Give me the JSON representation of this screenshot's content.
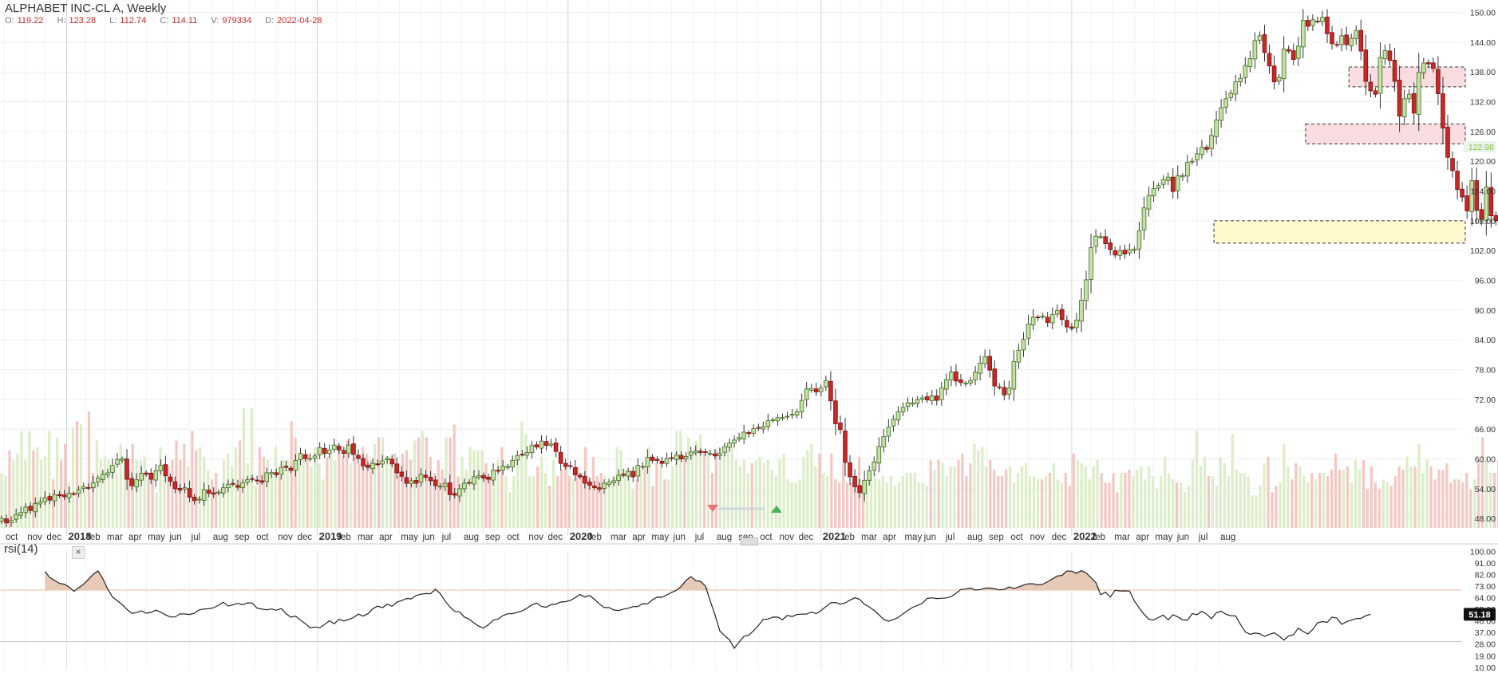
{
  "header": {
    "title": "ALPHABET INC-CL A, Weekly",
    "ohlc": [
      {
        "k": "O:",
        "v": "119.22"
      },
      {
        "k": "H:",
        "v": "123.28"
      },
      {
        "k": "L:",
        "v": "112.74"
      },
      {
        "k": "C:",
        "v": "114.11"
      },
      {
        "k": "V:",
        "v": "979334"
      },
      {
        "k": "D:",
        "v": "2022-04-28"
      }
    ]
  },
  "rsi_panel": {
    "title": "rsi(14)",
    "close_label": "×",
    "last_value_label": "51.18"
  },
  "price_label": "122.98",
  "colors": {
    "up": "#7cb342",
    "up_fill": "#c5e1a5",
    "down": "#c62828",
    "vol_up": "#dcedc8",
    "vol_down": "#f4c7c3",
    "zone_red": "#f8d7da",
    "zone_yellow": "#fff9c4",
    "rsi_fill": "#e6c9b6"
  },
  "chart_data": [
    {
      "type": "candlestick",
      "title": "ALPHABET INC-CL A, Weekly",
      "y_ticks": [
        "150.00",
        "144.00",
        "138.00",
        "132.00",
        "126.00",
        "120.00",
        "114.00",
        "108.00",
        "102.00",
        "96.00",
        "90.00",
        "84.00",
        "78.00",
        "72.00",
        "66.00",
        "60.00",
        "54.00",
        "48.00"
      ],
      "y_tick_values": [
        150,
        144,
        138,
        132,
        126,
        120,
        114,
        108,
        102,
        96,
        90,
        84,
        78,
        72,
        66,
        60,
        54,
        48
      ],
      "ylim": [
        44.5,
        152.5
      ],
      "x_tick_labels": [
        "oct",
        "nov",
        "dec",
        "2018",
        "feb",
        "mar",
        "apr",
        "may",
        "jun",
        "jul",
        "aug",
        "sep",
        "oct",
        "nov",
        "dec",
        "2019",
        "feb",
        "mar",
        "apr",
        "may",
        "jun",
        "jul",
        "aug",
        "sep",
        "oct",
        "nov",
        "dec",
        "2020",
        "feb",
        "mar",
        "apr",
        "may",
        "jun",
        "jul",
        "aug",
        "sep",
        "oct",
        "nov",
        "dec",
        "2021",
        "feb",
        "mar",
        "apr",
        "may",
        "jun",
        "jul",
        "aug",
        "sep",
        "oct",
        "nov",
        "dec",
        "2022",
        "feb",
        "mar",
        "apr",
        "may",
        "jun",
        "jul",
        "aug"
      ],
      "x_tick_positions": [
        0.5,
        5,
        9,
        13.5,
        17.5,
        21.5,
        26,
        30,
        34.5,
        39,
        43.5,
        48,
        52.5,
        57,
        61,
        65.5,
        69.5,
        73.5,
        78,
        82.5,
        87,
        91,
        95.5,
        100,
        104.5,
        109,
        113,
        117.5,
        121.5,
        126,
        130.5,
        134.5,
        139,
        143.5,
        148,
        152.5,
        157,
        161,
        165,
        170,
        174,
        178,
        182.5,
        187,
        191,
        195.5,
        200,
        204.5,
        209,
        213,
        217.5,
        222,
        226,
        230.5,
        235,
        239,
        243.5,
        248,
        252.5
      ],
      "x_tick_bold": [
        "2018",
        "2019",
        "2020",
        "2021",
        "2022"
      ],
      "weekly_close": [
        48.0,
        47.1,
        47.6,
        48.8,
        49.2,
        50.3,
        49.6,
        51.0,
        51.3,
        52.2,
        51.7,
        52.8,
        52.6,
        52.4,
        53.1,
        53.0,
        53.8,
        54.4,
        54.2,
        55.2,
        56.1,
        56.9,
        57.2,
        58.7,
        59.9,
        60.0,
        55.9,
        54.6,
        55.8,
        57.1,
        56.9,
        55.9,
        57.6,
        58.7,
        56.6,
        55.5,
        54.0,
        53.7,
        54.2,
        52.3,
        51.6,
        51.9,
        53.8,
        53.1,
        52.9,
        53.3,
        54.2,
        54.9,
        54.9,
        54.3,
        55.2,
        55.8,
        55.9,
        55.6,
        55.3,
        57.2,
        57.3,
        56.8,
        58.3,
        58.3,
        57.7,
        59.7,
        61.1,
        60.1,
        60.1,
        60.6,
        62.3,
        61.1,
        61.8,
        62.8,
        61.8,
        61.1,
        62.8,
        60.9,
        60.1,
        58.6,
        58.3,
        59.1,
        58.9,
        59.6,
        60.1,
        59.0,
        57.2,
        56.5,
        55.1,
        55.6,
        55.1,
        56.9,
        56.3,
        55.6,
        54.6,
        54.5,
        55.1,
        52.8,
        52.7,
        54.0,
        55.1,
        55.2,
        56.4,
        56.6,
        56.1,
        55.9,
        57.7,
        57.6,
        58.5,
        58.5,
        59.7,
        60.7,
        60.9,
        61.3,
        62.7,
        62.4,
        63.6,
        62.7,
        63.0,
        61.5,
        59.1,
        58.5,
        58.5,
        56.8,
        56.4,
        55.1,
        54.7,
        54.2,
        53.9,
        55.1,
        55.3,
        55.6,
        56.7,
        56.7,
        57.5,
        56.4,
        58.7,
        58.5,
        60.3,
        59.7,
        59.7,
        59.1,
        60.1,
        60.1,
        60.8,
        60.0,
        60.5,
        61.4,
        61.6,
        61.3,
        61.3,
        61.1,
        60.6,
        61.1,
        62.5,
        63.2,
        63.8,
        64.3,
        65.4,
        65.1,
        66.1,
        66.2,
        66.5,
        67.7,
        67.9,
        68.3,
        68.4,
        68.6,
        69.0,
        69.5,
        71.8,
        74.1,
        74.2,
        73.5,
        74.3,
        75.8,
        71.7,
        67.1,
        65.9,
        59.3,
        56.4,
        54.4,
        53.2,
        55.7,
        57.6,
        59.4,
        62.5,
        64.5,
        66.4,
        68.0,
        69.5,
        70.4,
        71.3,
        71.3,
        72.0,
        72.3,
        71.9,
        72.7,
        71.8,
        74.3,
        76.0,
        77.5,
        75.7,
        75.4,
        75.3,
        75.8,
        77.5,
        79.3,
        80.6,
        77.9,
        74.7,
        74.4,
        72.9,
        74.3,
        79.6,
        81.9,
        84.1,
        87.2,
        88.6,
        88.5,
        88.8,
        87.5,
        89.1,
        89.9,
        88.1,
        86.6,
        86.3,
        88.0,
        92.0,
        96.1,
        102.6,
        104.9,
        104.8,
        103.4,
        102.2,
        101.1,
        102.0,
        101.3,
        102.2,
        102.3,
        106.0,
        110.6,
        113.1,
        114.5,
        115.1,
        116.3,
        116.8,
        113.9,
        117.1,
        117.1,
        119.8,
        120.0,
        121.5,
        122.8,
        122.4,
        125.2,
        128.3,
        130.8,
        132.6,
        133.7,
        136.0,
        136.7,
        139.3,
        140.7,
        144.3,
        145.3,
        141.9,
        139.2,
        136.0,
        136.9,
        142.6,
        142.2,
        140.5,
        143.2,
        148.4,
        147.2,
        148.5,
        148.2,
        149.0,
        145.7,
        143.7,
        143.5,
        145.3,
        143.5,
        144.8,
        146.3,
        142.2,
        136.1,
        134.2,
        133.5,
        140.9,
        142.3,
        140.3,
        136.1,
        129.1,
        132.6,
        133.5,
        129.7,
        137.9,
        139.8,
        139.6,
        138.7,
        133.6,
        126.7,
        120.8,
        118.1,
        114.3,
        112.8,
        110.0,
        116.1,
        110.1,
        108.3,
        114.8,
        109.0,
        108.0,
        113.3,
        113.0,
        117.9,
        117.4,
        114.4,
        117.9,
        115.0,
        107.5,
        109.8,
        110.4,
        113.2,
        114.6,
        117.6,
        118.6,
        121.6,
        122.9
      ],
      "zones": [
        {
          "from": 135.0,
          "to": 139.0,
          "start_index": 280,
          "color": "red"
        },
        {
          "from": 123.5,
          "to": 127.5,
          "start_index": 271,
          "color": "red"
        },
        {
          "from": 103.5,
          "to": 108.0,
          "start_index": 252,
          "color": "yellow"
        }
      ],
      "annotations": [
        "down-marker (feb 2020)",
        "up-marker (may 2020)"
      ]
    },
    {
      "type": "line",
      "title": "rsi(14)",
      "y_ticks": [
        "100.00",
        "91.00",
        "82.00",
        "73.00",
        "64.00",
        "55.00",
        "46.00",
        "37.00",
        "28.00",
        "19.00",
        "10.00"
      ],
      "y_tick_values": [
        100,
        91,
        82,
        73,
        64,
        55,
        46,
        37,
        28,
        19,
        10
      ],
      "ylim": [
        8.0,
        101.0
      ],
      "overbought": 70,
      "oversold": 30,
      "last_value": 51.18,
      "values": [
        84.5,
        79.8,
        77.5,
        75.2,
        74.6,
        72.4,
        69.1,
        71.8,
        74.6,
        78.3,
        82.3,
        84.9,
        79.0,
        70.8,
        64.6,
        61.7,
        58.8,
        55.0,
        51.9,
        52.5,
        53.9,
        52.0,
        52.7,
        54.4,
        52.8,
        50.7,
        49.1,
        49.1,
        51.5,
        51.4,
        51.0,
        52.1,
        54.6,
        55.3,
        55.5,
        56.3,
        58.2,
        60.6,
        57.6,
        58.6,
        59.7,
        58.5,
        60.1,
        59.9,
        55.9,
        55.2,
        54.7,
        55.3,
        54.3,
        55.6,
        51.7,
        48.9,
        49.7,
        46.6,
        43.9,
        40.7,
        41.3,
        40.7,
        43.2,
        46.1,
        43.8,
        47.3,
        46.0,
        47.1,
        48.7,
        51.3,
        49.8,
        51.6,
        55.5,
        57.5,
        56.3,
        59.1,
        57.4,
        60.6,
        61.8,
        63.4,
        63.2,
        65.8,
        66.8,
        67.3,
        67.2,
        70.7,
        67.3,
        61.5,
        57.0,
        53.4,
        53.0,
        49.1,
        47.4,
        44.4,
        41.9,
        40.4,
        43.1,
        46.6,
        47.5,
        50.2,
        51.5,
        51.7,
        52.7,
        53.8,
        55.9,
        58.5,
        59.9,
        57.2,
        56.7,
        58.8,
        59.1,
        60.7,
        61.0,
        62.0,
        64.1,
        66.5,
        64.6,
        65.8,
        62.8,
        59.3,
        56.4,
        56.5,
        54.5,
        54.1,
        55.2,
        55.9,
        57.1,
        57.2,
        59.4,
        59.3,
        62.4,
        64.5,
        64.4,
        66.2,
        68.2,
        69.9,
        72.9,
        77.6,
        80.5,
        77.3,
        76.8,
        73.2,
        61.7,
        50.7,
        38.2,
        34.6,
        31.3,
        24.8,
        29.5,
        34.1,
        35.0,
        38.3,
        42.5,
        47.2,
        47.5,
        48.9,
        49.0,
        47.0,
        50.3,
        49.4,
        51.0,
        51.3,
        51.4,
        52.9,
        51.7,
        54.1,
        57.1,
        60.2,
        60.3,
        59.1,
        60.0,
        62.1,
        64.0,
        62.9,
        58.9,
        56.9,
        54.2,
        50.8,
        47.2,
        45.8,
        47.1,
        48.7,
        51.6,
        54.2,
        56.6,
        58.1,
        59.8,
        63.5,
        64.0,
        63.4,
        63.6,
        63.9,
        64.9,
        67.5,
        70.5,
        70.8,
        71.6,
        70.0,
        70.4,
        71.5,
        71.6,
        71.0,
        70.1,
        70.6,
        72.5,
        71.3,
        72.4,
        73.9,
        74.9,
        74.9,
        74.1,
        74.6,
        76.5,
        78.7,
        81.0,
        81.5,
        84.9,
        84.7,
        83.1,
        85.1,
        83.3,
        79.7,
        75.9,
        66.4,
        68.4,
        64.6,
        69.8,
        69.3,
        69.4,
        69.2,
        61.5,
        56.1,
        51.2,
        47.3,
        46.8,
        48.7,
        50.6,
        46.8,
        50.9,
        49.1,
        46.9,
        46.6,
        51.7,
        50.9,
        53.5,
        51.2,
        47.7,
        52.4,
        53.6,
        51.2,
        50.1,
        50.0,
        43.3,
        37.5,
        35.6,
        36.6,
        36.1,
        34.0,
        35.5,
        36.8,
        34.3,
        31.1,
        34.3,
        35.2,
        40.5,
        37.8,
        35.9,
        39.4,
        44.6,
        45.5,
        44.9,
        49.0,
        48.2,
        43.4,
        45.4,
        46.7,
        47.8,
        48.0,
        50.1,
        51.2
      ]
    },
    {
      "type": "bar",
      "title": "",
      "values": [
        17,
        16,
        24,
        21,
        23,
        30,
        21,
        30,
        24,
        25,
        21,
        22,
        30,
        15,
        28,
        21,
        26,
        14,
        31,
        33,
        32,
        11,
        36,
        17,
        27,
        21,
        22,
        21,
        19,
        17,
        26,
        22,
        18,
        26,
        21,
        21,
        22,
        15,
        15,
        11,
        25,
        17,
        19,
        21,
        27,
        21,
        26,
        19,
        30,
        24,
        25,
        22,
        18,
        15,
        17,
        12,
        21,
        23,
        19,
        25,
        27,
        37,
        20,
        37,
        13,
        25,
        22,
        21,
        16,
        25,
        16,
        21,
        21,
        33,
        28,
        21,
        22,
        23,
        19,
        25,
        20,
        15,
        22,
        23,
        21,
        26,
        22,
        27,
        20,
        22,
        20,
        25,
        23,
        21,
        26,
        28,
        28,
        22,
        22,
        23,
        16,
        23,
        24,
        21,
        27,
        28,
        30,
        28,
        22,
        17,
        21,
        18,
        28,
        28,
        32,
        16,
        22,
        18,
        25,
        24,
        24,
        24,
        20,
        15,
        15,
        21,
        25,
        16,
        11,
        16,
        22,
        33,
        29,
        16,
        16,
        19,
        22,
        17,
        13,
        21,
        16,
        18,
        20,
        16,
        15,
        19,
        17,
        25,
        15,
        22,
        16,
        17,
        16,
        13,
        16,
        25,
        24,
        18,
        18,
        12,
        15,
        18,
        19,
        25,
        13,
        20,
        20,
        15,
        15,
        19,
        30,
        30,
        22,
        28,
        23,
        27,
        29,
        23,
        24,
        17,
        24,
        25,
        23,
        24,
        25,
        21,
        19,
        21,
        17,
        20,
        21,
        22,
        20,
        21,
        18,
        16,
        21,
        23,
        15,
        14,
        14,
        15,
        22,
        24,
        26,
        19,
        23,
        17,
        16,
        23,
        15,
        14,
        20,
        14,
        14,
        16,
        22,
        13,
        14,
        15,
        17,
        15,
        16,
        14,
        16,
        13,
        14,
        16,
        17,
        17,
        17,
        14,
        14,
        13,
        21,
        18,
        21,
        20,
        16,
        19,
        19,
        21,
        23,
        16,
        20,
        26,
        24,
        25,
        19,
        21,
        18,
        16,
        16,
        18,
        19,
        14,
        17,
        19,
        20,
        16,
        16,
        15,
        15,
        16,
        17,
        20,
        15,
        14,
        17,
        13,
        23,
        21,
        20,
        19,
        15,
        19,
        21,
        17,
        14,
        14,
        17,
        11,
        17,
        17,
        18,
        16,
        18,
        19,
        15,
        19,
        16,
        12,
        16,
        22,
        17,
        15,
        14,
        14,
        11,
        13,
        21,
        30,
        19,
        22,
        16,
        16,
        13,
        22,
        20,
        16,
        29,
        18,
        17,
        17,
        16,
        10,
        10,
        13,
        20,
        22,
        11,
        13,
        14,
        26,
        19,
        15,
        20,
        19,
        16,
        14,
        17,
        15,
        17,
        17,
        16,
        18,
        23,
        18,
        18,
        19,
        14,
        21,
        18,
        21,
        12,
        19,
        14,
        12,
        15,
        14,
        13,
        16,
        19,
        18,
        22,
        19,
        19,
        26,
        17,
        21,
        19,
        15,
        18,
        18,
        20,
        14,
        15,
        15,
        14,
        17,
        12,
        15,
        21,
        28,
        22,
        17,
        17,
        21,
        24,
        23,
        27,
        21,
        13,
        23,
        19,
        17,
        24,
        33,
        32,
        33,
        22,
        21,
        16,
        17,
        12,
        7,
        5
      ]
    }
  ]
}
